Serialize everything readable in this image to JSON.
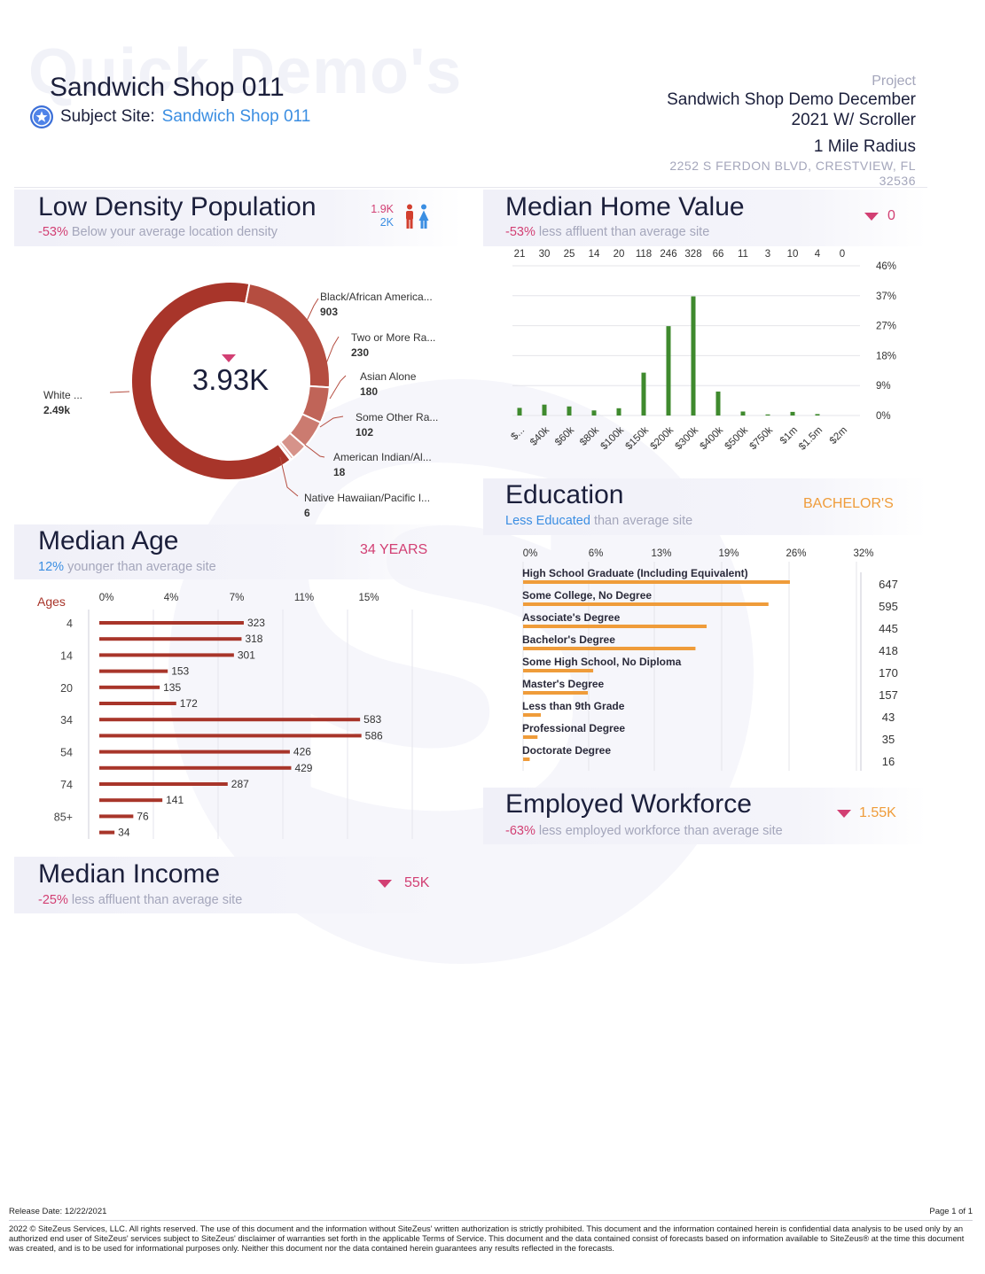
{
  "watermark": {
    "text": "Quick Demo's"
  },
  "header": {
    "site_name": "Sandwich Shop 011",
    "subject_label": "Subject Site:",
    "subject_value": "Sandwich Shop 011",
    "project_label": "Project",
    "project_line1": "Sandwich Shop Demo December",
    "project_line2": "2021 W/ Scroller",
    "radius": "1 Mile Radius",
    "address_line1": "2252 S FERDON BLVD, CRESTVIEW, FL",
    "address_line2": "32536"
  },
  "population": {
    "title": "Low Density Population",
    "pct": "-53%",
    "sub": "Below your average location density",
    "male_value": "1.9K",
    "female_value": "2K",
    "center_value": "3.93K",
    "slices": [
      {
        "label": "White ...",
        "value": "2.49k",
        "num": 2490,
        "color": "#a8352a"
      },
      {
        "label": "Black/African America...",
        "value": "903",
        "num": 903,
        "color": "#b54d40"
      },
      {
        "label": "Two or More Ra...",
        "value": "230",
        "num": 230,
        "color": "#c06458"
      },
      {
        "label": "Asian Alone",
        "value": "180",
        "num": 180,
        "color": "#cb7b70"
      },
      {
        "label": "Some Other Ra...",
        "value": "102",
        "num": 102,
        "color": "#d6938a"
      },
      {
        "label": "American Indian/Al...",
        "value": "18",
        "num": 18,
        "color": "#e0aba4"
      },
      {
        "label": "Native Hawaiian/Pacific I...",
        "value": "6",
        "num": 6,
        "color": "#eac4bf"
      }
    ]
  },
  "home_value": {
    "title": "Median Home Value",
    "pct": "-53%",
    "sub": "less affluent than average site",
    "value": "0",
    "color": "#3f8a2e",
    "top_counts": [
      "21",
      "30",
      "25",
      "14",
      "20",
      "118",
      "246",
      "328",
      "66",
      "11",
      "3",
      "10",
      "4",
      "0"
    ],
    "y_ticks": [
      "46%",
      "37%",
      "27%",
      "18%",
      "9%",
      "0%"
    ],
    "x_labels": [
      "$...",
      "$40k",
      "$60k",
      "$80k",
      "$100k",
      "$150k",
      "$200k",
      "$300k",
      "$400k",
      "$500k",
      "$750k",
      "$1m",
      "$1.5m",
      "$2m"
    ],
    "counts": [
      21,
      30,
      25,
      14,
      20,
      118,
      246,
      328,
      66,
      11,
      3,
      10,
      4,
      0
    ]
  },
  "education": {
    "title": "Education",
    "sub_highlight": "Less Educated",
    "sub": "than average site",
    "value": "BACHELOR'S",
    "color": "#ef9c3a",
    "x_ticks": [
      "0%",
      "6%",
      "13%",
      "19%",
      "26%",
      "32%"
    ],
    "rows": [
      {
        "label": "High School Graduate (Including Equivalent)",
        "count": "647",
        "num": 647
      },
      {
        "label": "Some College, No Degree",
        "count": "595",
        "num": 595
      },
      {
        "label": "Associate's Degree",
        "count": "445",
        "num": 445
      },
      {
        "label": "Bachelor's Degree",
        "count": "418",
        "num": 418
      },
      {
        "label": "Some High School, No Diploma",
        "count": "170",
        "num": 170
      },
      {
        "label": "Master's Degree",
        "count": "157",
        "num": 157
      },
      {
        "label": "Less than 9th Grade",
        "count": "43",
        "num": 43
      },
      {
        "label": "Professional Degree",
        "count": "35",
        "num": 35
      },
      {
        "label": "Doctorate Degree",
        "count": "16",
        "num": 16
      }
    ]
  },
  "age": {
    "title": "Median Age",
    "pct": "12%",
    "sub": "younger than average site",
    "value": "34 YEARS",
    "axis_label": "Ages",
    "color": "#a8352a",
    "x_ticks": [
      "0%",
      "4%",
      "7%",
      "11%",
      "15%"
    ],
    "age_labels": [
      "4",
      "14",
      "20",
      "34",
      "54",
      "74",
      "85+"
    ],
    "values": [
      323,
      318,
      301,
      153,
      135,
      172,
      583,
      586,
      426,
      429,
      287,
      141,
      76,
      34
    ]
  },
  "workforce": {
    "title": "Employed Workforce",
    "pct": "-63%",
    "sub": "less employed workforce than average site",
    "value": "1.55K"
  },
  "income": {
    "title": "Median Income",
    "pct": "-25%",
    "sub": "less affluent than average site",
    "value": "55K"
  },
  "footer": {
    "release": "Release Date: 12/22/2021",
    "page": "Page 1 of 1",
    "disclaimer": "2022 © SiteZeus Services, LLC. All rights reserved. The use of this document and the information without SiteZeus' written authorization is strictly prohibited. This document and the information contained herein is confidential data analysis to be used only by an authorized end user of SiteZeus' services subject to SiteZeus' disclaimer of warranties set forth in the applicable Terms of Service. This document and the data contained consist of forecasts based on information available to SiteZeus® at the time this document was created, and is to be used for informational purposes only. Neither this document nor the data contained herein guarantees any results reflected in the forecasts."
  }
}
